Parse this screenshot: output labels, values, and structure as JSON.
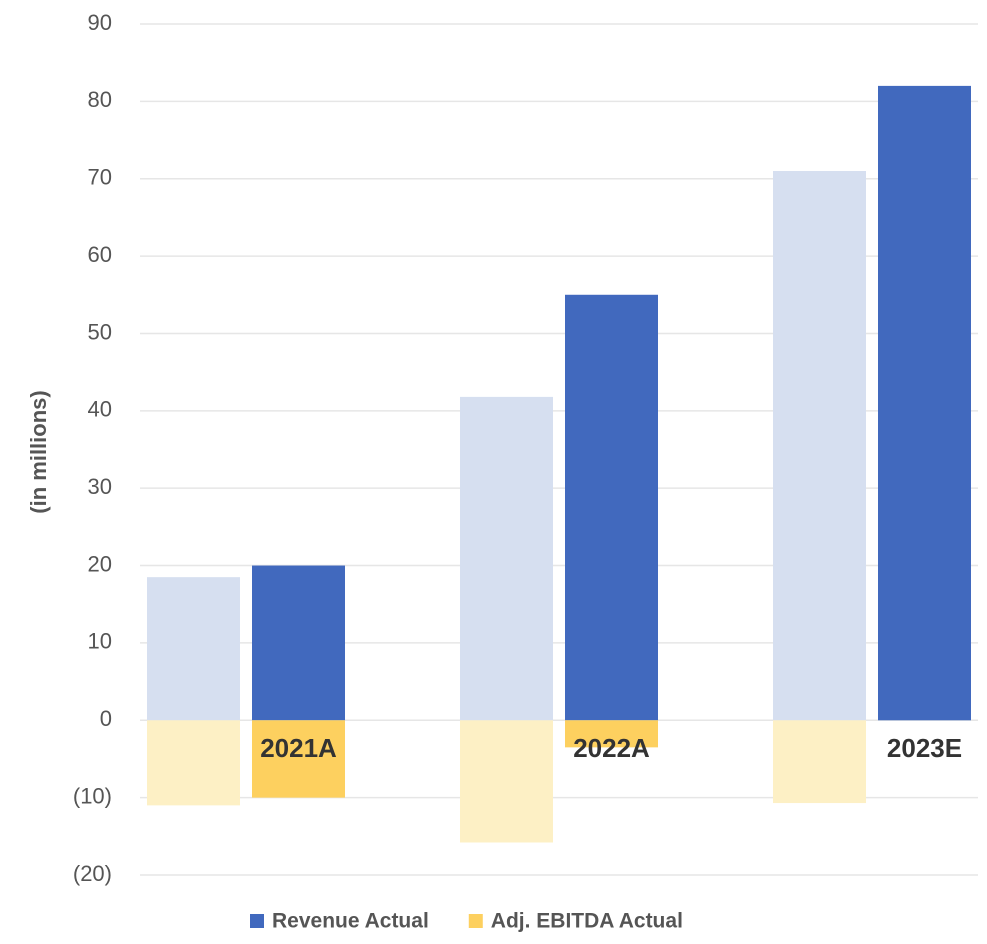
{
  "chart_data": {
    "type": "bar",
    "y_label": "(in millions)",
    "categories": [
      "2021A",
      "2022A",
      "2023E"
    ],
    "series": [
      {
        "color": "#d6dff0",
        "values": [
          18.5,
          41.8,
          71
        ]
      },
      {
        "name": "Revenue Actual",
        "color": "#4169be",
        "values": [
          20,
          55,
          82
        ]
      },
      {
        "color": "#fdf0c5",
        "values": [
          -11,
          -15.8,
          -10.7
        ]
      },
      {
        "name": "Adj. EBITDA Actual",
        "color": "#fdd05f",
        "values": [
          -10,
          -3.5,
          null
        ]
      }
    ],
    "ylim": [
      -20,
      90
    ],
    "yticks": [
      {
        "value": -20,
        "label": "(20)"
      },
      {
        "value": -10,
        "label": "(10)"
      },
      0,
      10,
      20,
      30,
      40,
      50,
      60,
      70,
      80,
      90
    ],
    "grid": true
  }
}
